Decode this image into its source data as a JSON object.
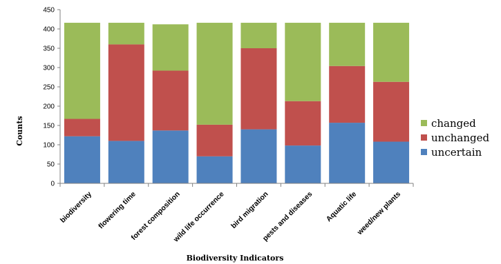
{
  "chart_data": {
    "type": "bar",
    "stacked": true,
    "title": "",
    "xlabel": "Biodiversity Indicators",
    "ylabel": "Counts",
    "ylim": [
      0,
      450
    ],
    "yticks": [
      0,
      50,
      100,
      150,
      200,
      250,
      300,
      350,
      400,
      450
    ],
    "grid": false,
    "legend_position": "right",
    "categories": [
      "biodiversity",
      "flowering time",
      "forest composition",
      "wild life occurrence",
      "bird migration",
      "pests and diseases",
      "Aquatic life",
      "weed/new plants"
    ],
    "series": [
      {
        "name": "uncertain",
        "color": "#4f81bd",
        "values": [
          122,
          110,
          137,
          70,
          140,
          98,
          157,
          108
        ]
      },
      {
        "name": "unchanged",
        "color": "#c0504d",
        "values": [
          45,
          250,
          155,
          82,
          210,
          115,
          147,
          155
        ]
      },
      {
        "name": "changed",
        "color": "#9bbb59",
        "values": [
          249,
          56,
          120,
          264,
          66,
          203,
          112,
          153
        ]
      }
    ]
  }
}
